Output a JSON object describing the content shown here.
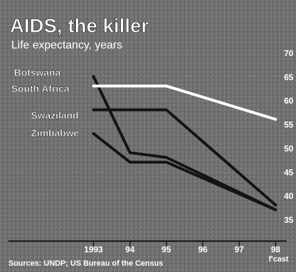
{
  "chart_data": {
    "type": "line",
    "title": "AIDS, the killer",
    "subtitle": "Life expectancy, years",
    "x": [
      "1993",
      "94",
      "95",
      "96",
      "97",
      "98"
    ],
    "forecast_label": "f'cast",
    "ylim": [
      35,
      70
    ],
    "yticks": [
      35,
      40,
      45,
      50,
      55,
      60,
      65,
      70
    ],
    "series": [
      {
        "name": "Botswana",
        "values": [
          65,
          49,
          48,
          null,
          null,
          37
        ]
      },
      {
        "name": "South Africa",
        "values": [
          63,
          null,
          63,
          null,
          null,
          56
        ]
      },
      {
        "name": "Swaziland",
        "values": [
          58,
          null,
          58,
          null,
          null,
          38
        ]
      },
      {
        "name": "Zimbabwe",
        "values": [
          53,
          47,
          47,
          null,
          null,
          37
        ]
      }
    ],
    "source": "Sources: UNDP; US Bureau of the Census",
    "colors": {
      "background": "#6e6e6e",
      "line_dark": "#141414",
      "line_highlight": "#ffffff",
      "text": "#ffffff"
    }
  }
}
